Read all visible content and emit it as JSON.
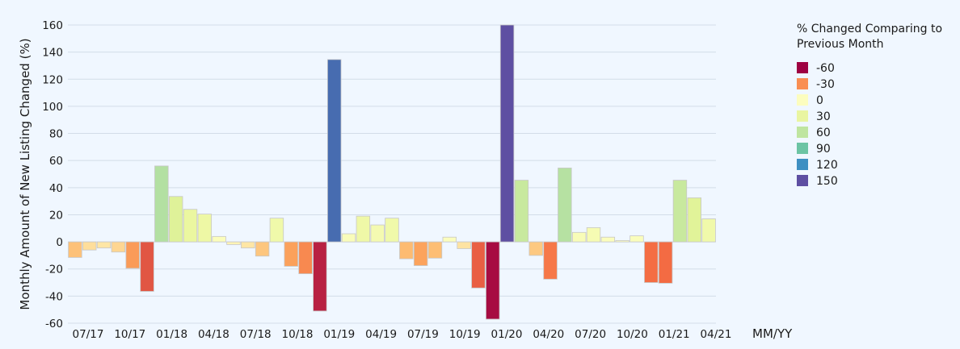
{
  "chart_data": {
    "type": "bar",
    "title": "",
    "xlabel": "MM/YY",
    "ylabel": "Monthly Amount of New Listing Changed (%)",
    "ylim": [
      -60,
      160
    ],
    "yticks": [
      -60,
      -40,
      -20,
      0,
      20,
      40,
      60,
      80,
      100,
      120,
      140,
      160
    ],
    "grid": true,
    "xtick_labels": [
      "07/17",
      "10/17",
      "01/18",
      "04/18",
      "07/18",
      "10/18",
      "01/19",
      "04/19",
      "07/19",
      "10/19",
      "01/20",
      "04/20",
      "07/20",
      "10/20",
      "01/21",
      "04/21"
    ],
    "values": [
      -11.5,
      -6,
      -4.5,
      -7.5,
      -19.5,
      -36.5,
      56,
      33.5,
      24,
      20.5,
      4,
      -2,
      -4.5,
      -10.5,
      17.5,
      -18,
      -23.5,
      -51,
      134.5,
      6,
      19,
      12.5,
      17.5,
      -12.5,
      -17.5,
      -12,
      3.5,
      -5,
      -34,
      -57,
      160,
      45.5,
      -10,
      -27.5,
      54.5,
      7,
      10.5,
      3.5,
      1,
      4.5,
      -30,
      -30.5,
      45.5,
      32.5,
      17
    ],
    "legend": {
      "title_lines": [
        "% Changed Comparing to",
        "Previous Month"
      ],
      "placement": "right",
      "items": [
        {
          "label": "-60",
          "color": "#9e0142"
        },
        {
          "label": "-30",
          "color": "#f98e52"
        },
        {
          "label": "0",
          "color": "#fcfdbf"
        },
        {
          "label": "30",
          "color": "#e9f5a1"
        },
        {
          "label": "60",
          "color": "#bfe5a0"
        },
        {
          "label": "90",
          "color": "#6cc4a4"
        },
        {
          "label": "120",
          "color": "#3e8fc2"
        },
        {
          "label": "150",
          "color": "#5e4fa2"
        }
      ]
    },
    "colorscale": {
      "domain": [
        -60,
        -30,
        -15,
        0,
        30,
        60,
        90,
        120,
        150
      ],
      "colors": [
        "#9e0142",
        "#f46d43",
        "#fdae61",
        "#fefec2",
        "#e6f598",
        "#abdda4",
        "#66c2a5",
        "#3288bd",
        "#5e4fa2"
      ]
    }
  }
}
